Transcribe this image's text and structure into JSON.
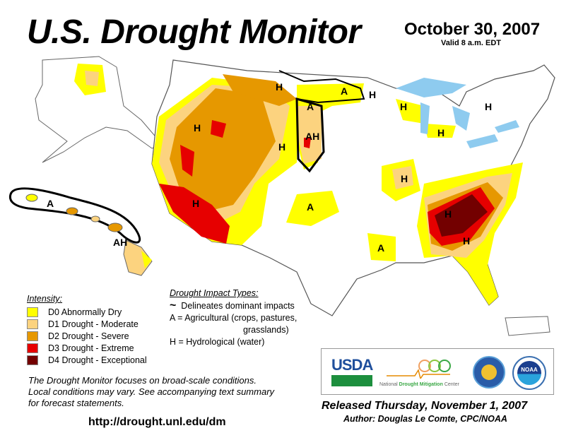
{
  "header": {
    "title": "U.S. Drought Monitor",
    "date": "October 30, 2007",
    "valid": "Valid 8 a.m. EDT"
  },
  "legend": {
    "heading": "Intensity:",
    "items": [
      {
        "label": "D0 Abnormally Dry",
        "color": "#ffff00"
      },
      {
        "label": "D1 Drought - Moderate",
        "color": "#fcd37f"
      },
      {
        "label": "D2 Drought - Severe",
        "color": "#e69800"
      },
      {
        "label": "D3 Drought - Extreme",
        "color": "#e60000"
      },
      {
        "label": "D4 Drought - Exceptional",
        "color": "#730000"
      }
    ]
  },
  "impacts": {
    "heading": "Drought Impact Types:",
    "line": "Delineates dominant impacts",
    "agricultural": "A = Agricultural (crops, pastures,",
    "agricultural_cont": "grasslands)",
    "hydrological": "H = Hydrological (water)"
  },
  "note": {
    "line1": "The Drought Monitor focuses on broad-scale conditions.",
    "line2": "Local conditions may vary.  See accompanying text summary",
    "line3": "for forecast statements."
  },
  "url": "http://drought.unl.edu/dm",
  "logos": {
    "usda": "USDA",
    "ndmc_national": "National",
    "ndmc_drought": "Drought Mitigation",
    "ndmc_center": "Center",
    "noaa": "NOAA"
  },
  "footer": {
    "released": "Released Thursday, November 1, 2007",
    "author": "Author: Douglas Le Comte, CPC/NOAA"
  },
  "map_labels": [
    "H",
    "A",
    "H",
    "A",
    "AH",
    "H",
    "H",
    "H",
    "H",
    "H",
    "H",
    "H",
    "A",
    "A",
    "H",
    "H",
    "A",
    "AH"
  ],
  "colors": {
    "water": "#8ecbef",
    "river": "#3399ff",
    "border": "#666666",
    "impact_line": "#000000"
  }
}
